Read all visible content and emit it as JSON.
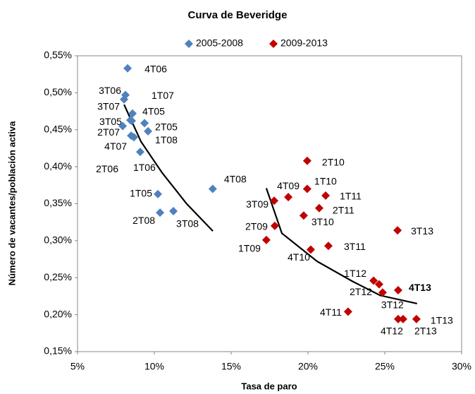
{
  "chart_data": {
    "type": "scatter",
    "title": "Curva de Beveridge",
    "xlabel": "Tasa de paro",
    "ylabel": "Número de vacantes/población activa",
    "xlim": [
      5,
      30
    ],
    "ylim": [
      0.15,
      0.55
    ],
    "xticks": [
      {
        "value": 5,
        "label": "5%"
      },
      {
        "value": 10,
        "label": "10%"
      },
      {
        "value": 15,
        "label": "15%"
      },
      {
        "value": 20,
        "label": "20%"
      },
      {
        "value": 25,
        "label": "25%"
      },
      {
        "value": 30,
        "label": "30%"
      }
    ],
    "yticks": [
      {
        "value": 0.15,
        "label": "0,15%"
      },
      {
        "value": 0.2,
        "label": "0,20%"
      },
      {
        "value": 0.25,
        "label": "0,25%"
      },
      {
        "value": 0.3,
        "label": "0,30%"
      },
      {
        "value": 0.35,
        "label": "0,35%"
      },
      {
        "value": 0.4,
        "label": "0,40%"
      },
      {
        "value": 0.45,
        "label": "0,45%"
      },
      {
        "value": 0.5,
        "label": "0,50%"
      },
      {
        "value": 0.55,
        "label": "0,55%"
      }
    ],
    "grid": false,
    "legend": "top",
    "series": [
      {
        "name": "2005-2008",
        "color": "#4f81bd",
        "labels": [
          "1T05",
          "2T05",
          "3T05",
          "4T05",
          "1T06",
          "2T06",
          "3T06",
          "4T06",
          "1T07",
          "2T07",
          "3T07",
          "4T07",
          "1T08",
          "2T08",
          "3T08",
          "4T08"
        ],
        "x": [
          10.23,
          9.59,
          8.53,
          8.58,
          9.08,
          8.67,
          8.12,
          8.26,
          8.44,
          7.94,
          8.03,
          8.49,
          9.36,
          10.37,
          11.24,
          13.8
        ],
        "values": [
          0.363,
          0.448,
          0.462,
          0.472,
          0.42,
          0.44,
          0.497,
          0.533,
          0.463,
          0.455,
          0.491,
          0.442,
          0.459,
          0.338,
          0.34,
          0.37
        ]
      },
      {
        "name": "2009-2013",
        "color": "#c00000",
        "labels": [
          "1T09",
          "2T09",
          "3T09",
          "4T09",
          "1T10",
          "2T10",
          "3T10",
          "4T10",
          "1T11",
          "2T11",
          "3T11",
          "4T11",
          "1T12",
          "2T12",
          "3T12",
          "4T12",
          "1T13",
          "2T13",
          "3T13",
          "4T13"
        ],
        "x": [
          17.29,
          17.84,
          17.8,
          18.72,
          19.95,
          19.95,
          19.72,
          20.18,
          21.15,
          20.73,
          21.33,
          22.61,
          24.27,
          24.86,
          24.63,
          25.87,
          27.06,
          26.19,
          25.83,
          25.87
        ],
        "values": [
          0.301,
          0.32,
          0.354,
          0.359,
          0.37,
          0.408,
          0.334,
          0.288,
          0.361,
          0.344,
          0.293,
          0.204,
          0.246,
          0.23,
          0.241,
          0.194,
          0.194,
          0.194,
          0.314,
          0.233
        ]
      }
    ],
    "trendlines": [
      {
        "color": "#000000",
        "x": [
          8.03,
          9.13,
          10.5,
          12.1,
          13.81
        ],
        "values": [
          0.484,
          0.434,
          0.392,
          0.35,
          0.313
        ]
      },
      {
        "color": "#000000",
        "x": [
          17.29,
          18.3,
          20.6,
          22.9,
          24.7,
          27.1
        ],
        "values": [
          0.371,
          0.31,
          0.272,
          0.245,
          0.226,
          0.215
        ]
      }
    ]
  }
}
